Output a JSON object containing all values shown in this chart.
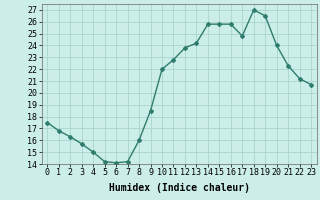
{
  "x": [
    0,
    1,
    2,
    3,
    4,
    5,
    6,
    7,
    8,
    9,
    10,
    11,
    12,
    13,
    14,
    15,
    16,
    17,
    18,
    19,
    20,
    21,
    22,
    23
  ],
  "y": [
    17.5,
    16.8,
    16.3,
    15.7,
    15.0,
    14.2,
    14.1,
    14.2,
    16.0,
    18.5,
    22.0,
    22.8,
    23.8,
    24.2,
    25.8,
    25.8,
    25.8,
    24.8,
    27.0,
    26.5,
    24.0,
    22.3,
    21.2,
    20.7
  ],
  "line_color": "#2e7d6e",
  "marker": "D",
  "marker_size": 2,
  "bg_color": "#cceee8",
  "grid_color": "#aad4ce",
  "xlabel": "Humidex (Indice chaleur)",
  "xlim": [
    -0.5,
    23.5
  ],
  "ylim": [
    14,
    27.5
  ],
  "yticks": [
    14,
    15,
    16,
    17,
    18,
    19,
    20,
    21,
    22,
    23,
    24,
    25,
    26,
    27
  ],
  "xticks": [
    0,
    1,
    2,
    3,
    4,
    5,
    6,
    7,
    8,
    9,
    10,
    11,
    12,
    13,
    14,
    15,
    16,
    17,
    18,
    19,
    20,
    21,
    22,
    23
  ],
  "xlabel_fontsize": 7,
  "tick_fontsize": 6,
  "line_width": 1.0
}
